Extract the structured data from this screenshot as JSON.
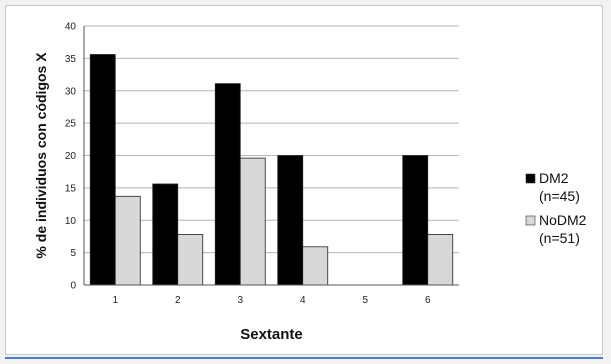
{
  "chart_data": {
    "type": "bar",
    "categories": [
      "1",
      "2",
      "3",
      "4",
      "5",
      "6"
    ],
    "series": [
      {
        "name": "DM2",
        "label_line2": "(n=45)",
        "values": [
          35.6,
          15.6,
          31.1,
          20,
          0,
          20
        ],
        "color": "#000000"
      },
      {
        "name": "NoDM2",
        "label_line2": "(n=51)",
        "values": [
          13.7,
          7.8,
          19.6,
          5.9,
          0,
          7.8
        ],
        "color": "#d8d8d8"
      }
    ],
    "xlabel": "Sextante",
    "ylabel": "% de individuos con códigos X",
    "ylim": [
      0,
      40
    ],
    "yticks": [
      "0",
      "5",
      "10",
      "15",
      "20",
      "25",
      "30",
      "35",
      "40"
    ],
    "grid": true,
    "legend_position": "right"
  }
}
